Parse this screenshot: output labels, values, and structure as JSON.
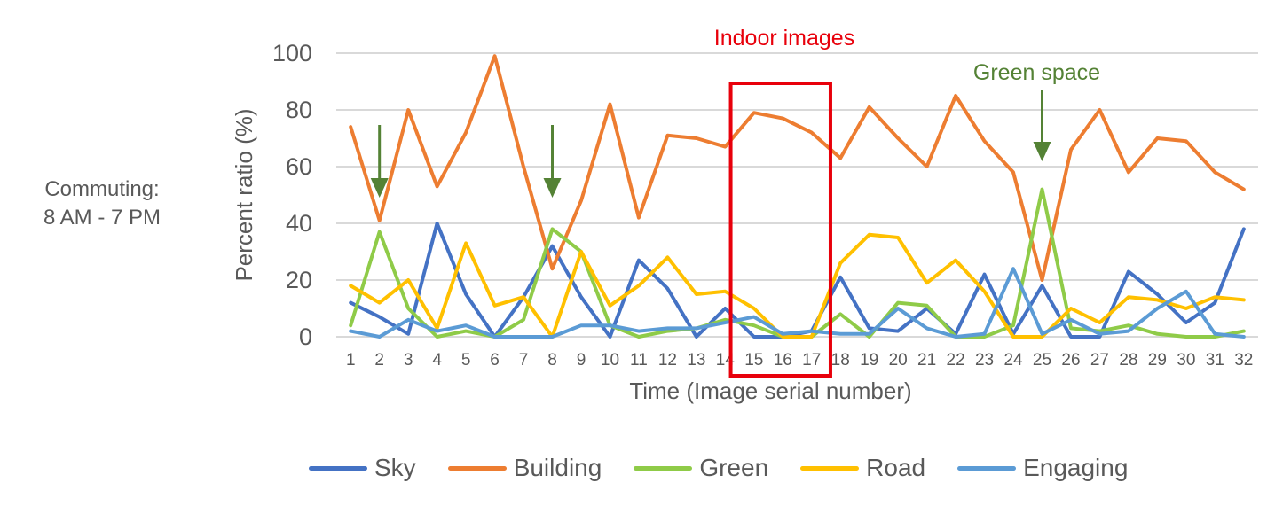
{
  "side_label": {
    "line1": "Commuting:",
    "line2": "8 AM - 7 PM"
  },
  "annotations": {
    "indoor": {
      "text": "Indoor images",
      "color": "#e41a1c",
      "from": 15,
      "to": 17
    },
    "green_space": {
      "text": "Green space",
      "color": "#548235"
    },
    "arrows_at": [
      2,
      8,
      25
    ]
  },
  "chart_data": {
    "type": "line",
    "title": "",
    "xlabel": "Time (Image serial number)",
    "ylabel": "Percent ratio (%)",
    "ylim": [
      0,
      100
    ],
    "yticks": [
      0,
      20,
      40,
      60,
      80,
      100
    ],
    "grid": true,
    "legend_position": "bottom",
    "x": [
      1,
      2,
      3,
      4,
      5,
      6,
      7,
      8,
      9,
      10,
      11,
      12,
      13,
      14,
      15,
      16,
      17,
      18,
      19,
      20,
      21,
      22,
      23,
      24,
      25,
      26,
      27,
      28,
      29,
      30,
      31,
      32
    ],
    "series": [
      {
        "name": "Sky",
        "color": "#4472c4",
        "values": [
          12,
          7,
          1,
          40,
          15,
          0,
          14,
          32,
          14,
          0,
          27,
          17,
          0,
          10,
          0,
          0,
          2,
          21,
          3,
          2,
          10,
          1,
          22,
          1,
          18,
          0,
          0,
          23,
          15,
          5,
          12,
          38
        ]
      },
      {
        "name": "Building",
        "color": "#ed7d31",
        "values": [
          74,
          41,
          80,
          53,
          72,
          99,
          60,
          24,
          48,
          82,
          42,
          71,
          70,
          67,
          79,
          77,
          72,
          63,
          81,
          70,
          60,
          85,
          69,
          58,
          20,
          66,
          80,
          58,
          70,
          69,
          58,
          52
        ]
      },
      {
        "name": "Green",
        "color": "#8fcb48",
        "values": [
          4,
          37,
          10,
          0,
          2,
          0,
          6,
          38,
          30,
          4,
          0,
          2,
          3,
          6,
          4,
          0,
          0,
          8,
          0,
          12,
          11,
          0,
          0,
          4,
          52,
          3,
          2,
          4,
          1,
          0,
          0,
          2
        ]
      },
      {
        "name": "Road",
        "color": "#ffc000",
        "values": [
          18,
          12,
          20,
          3,
          33,
          11,
          14,
          0,
          30,
          11,
          18,
          28,
          15,
          16,
          10,
          0,
          0,
          26,
          36,
          35,
          19,
          27,
          16,
          0,
          0,
          10,
          5,
          14,
          13,
          10,
          14,
          13
        ]
      },
      {
        "name": "Engaging",
        "color": "#5b9bd5",
        "values": [
          2,
          0,
          6,
          2,
          4,
          0,
          0,
          0,
          4,
          4,
          2,
          3,
          3,
          5,
          7,
          1,
          2,
          1,
          1,
          10,
          3,
          0,
          1,
          24,
          1,
          6,
          1,
          2,
          10,
          16,
          1,
          0
        ]
      }
    ]
  }
}
